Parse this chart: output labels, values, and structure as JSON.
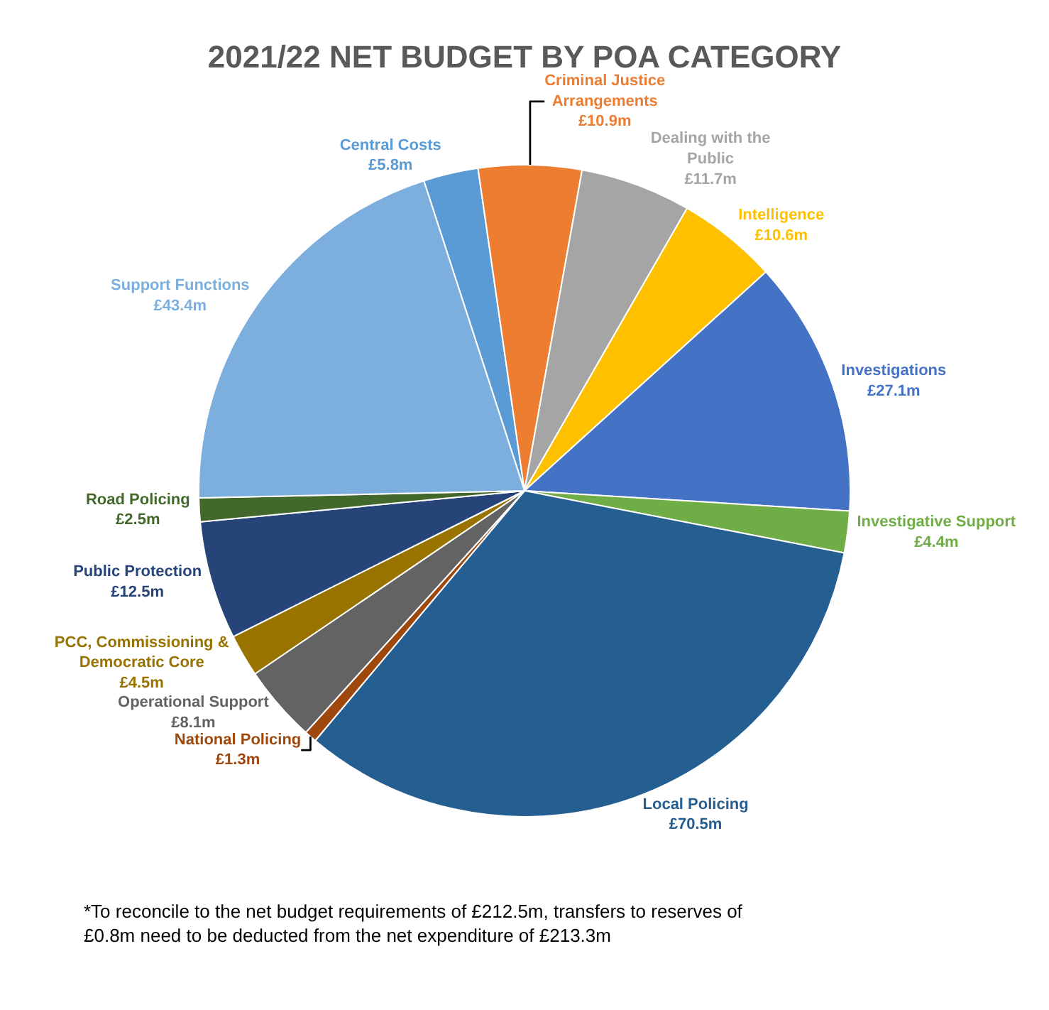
{
  "chart_data": {
    "type": "pie",
    "title": "2021/22 NET BUDGET BY POA CATEGORY",
    "categories": [
      "Central Costs",
      "Criminal Justice Arrangements",
      "Dealing with the Public",
      "Intelligence",
      "Investigations",
      "Investigative Support",
      "Local Policing",
      "National Policing",
      "Operational Support",
      "PCC, Commissioning & Democratic Core",
      "Public Protection",
      "Road Policing",
      "Support Functions"
    ],
    "values": [
      5.8,
      10.9,
      11.7,
      10.6,
      27.1,
      4.4,
      70.5,
      1.3,
      8.1,
      4.5,
      12.5,
      2.5,
      43.4
    ],
    "value_labels": [
      "£5.8m",
      "£10.9m",
      "£11.7m",
      "£10.6m",
      "£27.1m",
      "£4.4m",
      "£70.5m",
      "£1.3m",
      "£8.1m",
      "£4.5m",
      "£12.5m",
      "£2.5m",
      "£43.4m"
    ],
    "colors": [
      "#5b9bd5",
      "#ed7d31",
      "#a5a5a5",
      "#ffc000",
      "#4472c4",
      "#70ad47",
      "#255e91",
      "#9e480e",
      "#636363",
      "#997300",
      "#264478",
      "#43682b",
      "#7cafdd"
    ],
    "legend": false,
    "annotations": [
      "*To reconcile to the net budget requirements of £212.5m, transfers to reserves of £0.8m need to be deducted from the net expenditure of £213.3m"
    ]
  }
}
